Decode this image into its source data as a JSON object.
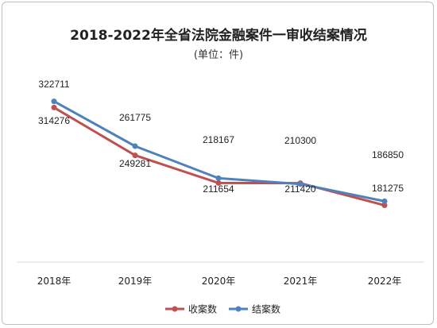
{
  "chart_data": {
    "type": "line",
    "title": "2018-2022年全省法院金融案件一审收结案情况",
    "subtitle": "(单位：件)",
    "categories": [
      "2018年",
      "2019年",
      "2020年",
      "2021年",
      "2022年"
    ],
    "series": [
      {
        "name": "收案数",
        "color": "#c0504d",
        "values": [
          314276,
          249281,
          211654,
          211420,
          181275
        ]
      },
      {
        "name": "结案数",
        "color": "#4f81bd",
        "values": [
          322711,
          261775,
          218167,
          210300,
          186850
        ]
      }
    ],
    "ylim": [
      0,
      360000
    ],
    "grid": false,
    "legend": "bottom"
  }
}
